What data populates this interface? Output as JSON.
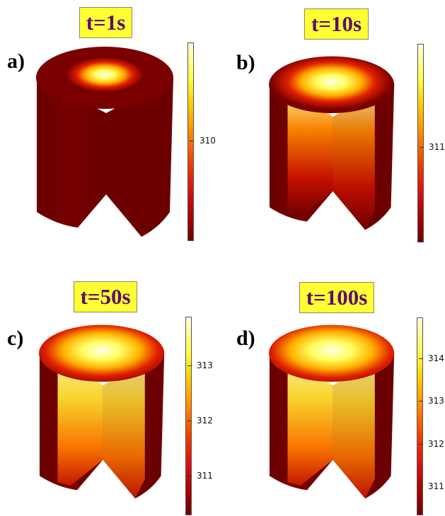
{
  "panels": [
    {
      "id": "a",
      "letter": "a)",
      "time": "t=1s",
      "ticks": [
        "310"
      ],
      "spread": 0.0
    },
    {
      "id": "b",
      "letter": "b)",
      "time": "t=10s",
      "ticks": [
        "311"
      ],
      "spread": 0.45
    },
    {
      "id": "c",
      "letter": "c)",
      "time": "t=50s",
      "ticks": [
        "313",
        "312",
        "311"
      ],
      "spread": 0.75
    },
    {
      "id": "d",
      "letter": "d)",
      "time": "t=100s",
      "ticks": [
        "314",
        "313",
        "312",
        "311"
      ],
      "spread": 0.85
    }
  ],
  "colors": {
    "dark": "#6e0000",
    "hot": "#ffffe0",
    "label_bg": "#ffff33",
    "label_text": "#5a0f6e"
  }
}
